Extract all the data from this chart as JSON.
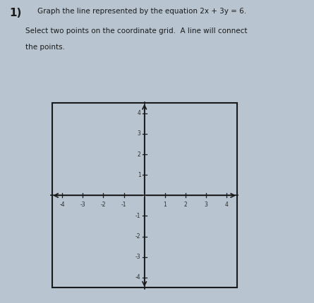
{
  "title_number": "1)",
  "instruction_line1": "Graph the line represented by the equation 2x + 3y = 6.",
  "instruction_line2": "Select two points on the coordinate grid.  A line will connect",
  "instruction_line3": "the points.",
  "xmin": -4,
  "xmax": 4,
  "ymin": -4,
  "ymax": 4,
  "background_color": "#b8c5d0",
  "axis_color": "#1a1a1a",
  "text_color": "#1a1a1a",
  "tick_label_color": "#2a2a2a",
  "title_fontsize": 11,
  "instruction_fontsize": 7.5,
  "tick_fontsize": 5.5,
  "axis_lw": 1.2,
  "border_lw": 1.5
}
